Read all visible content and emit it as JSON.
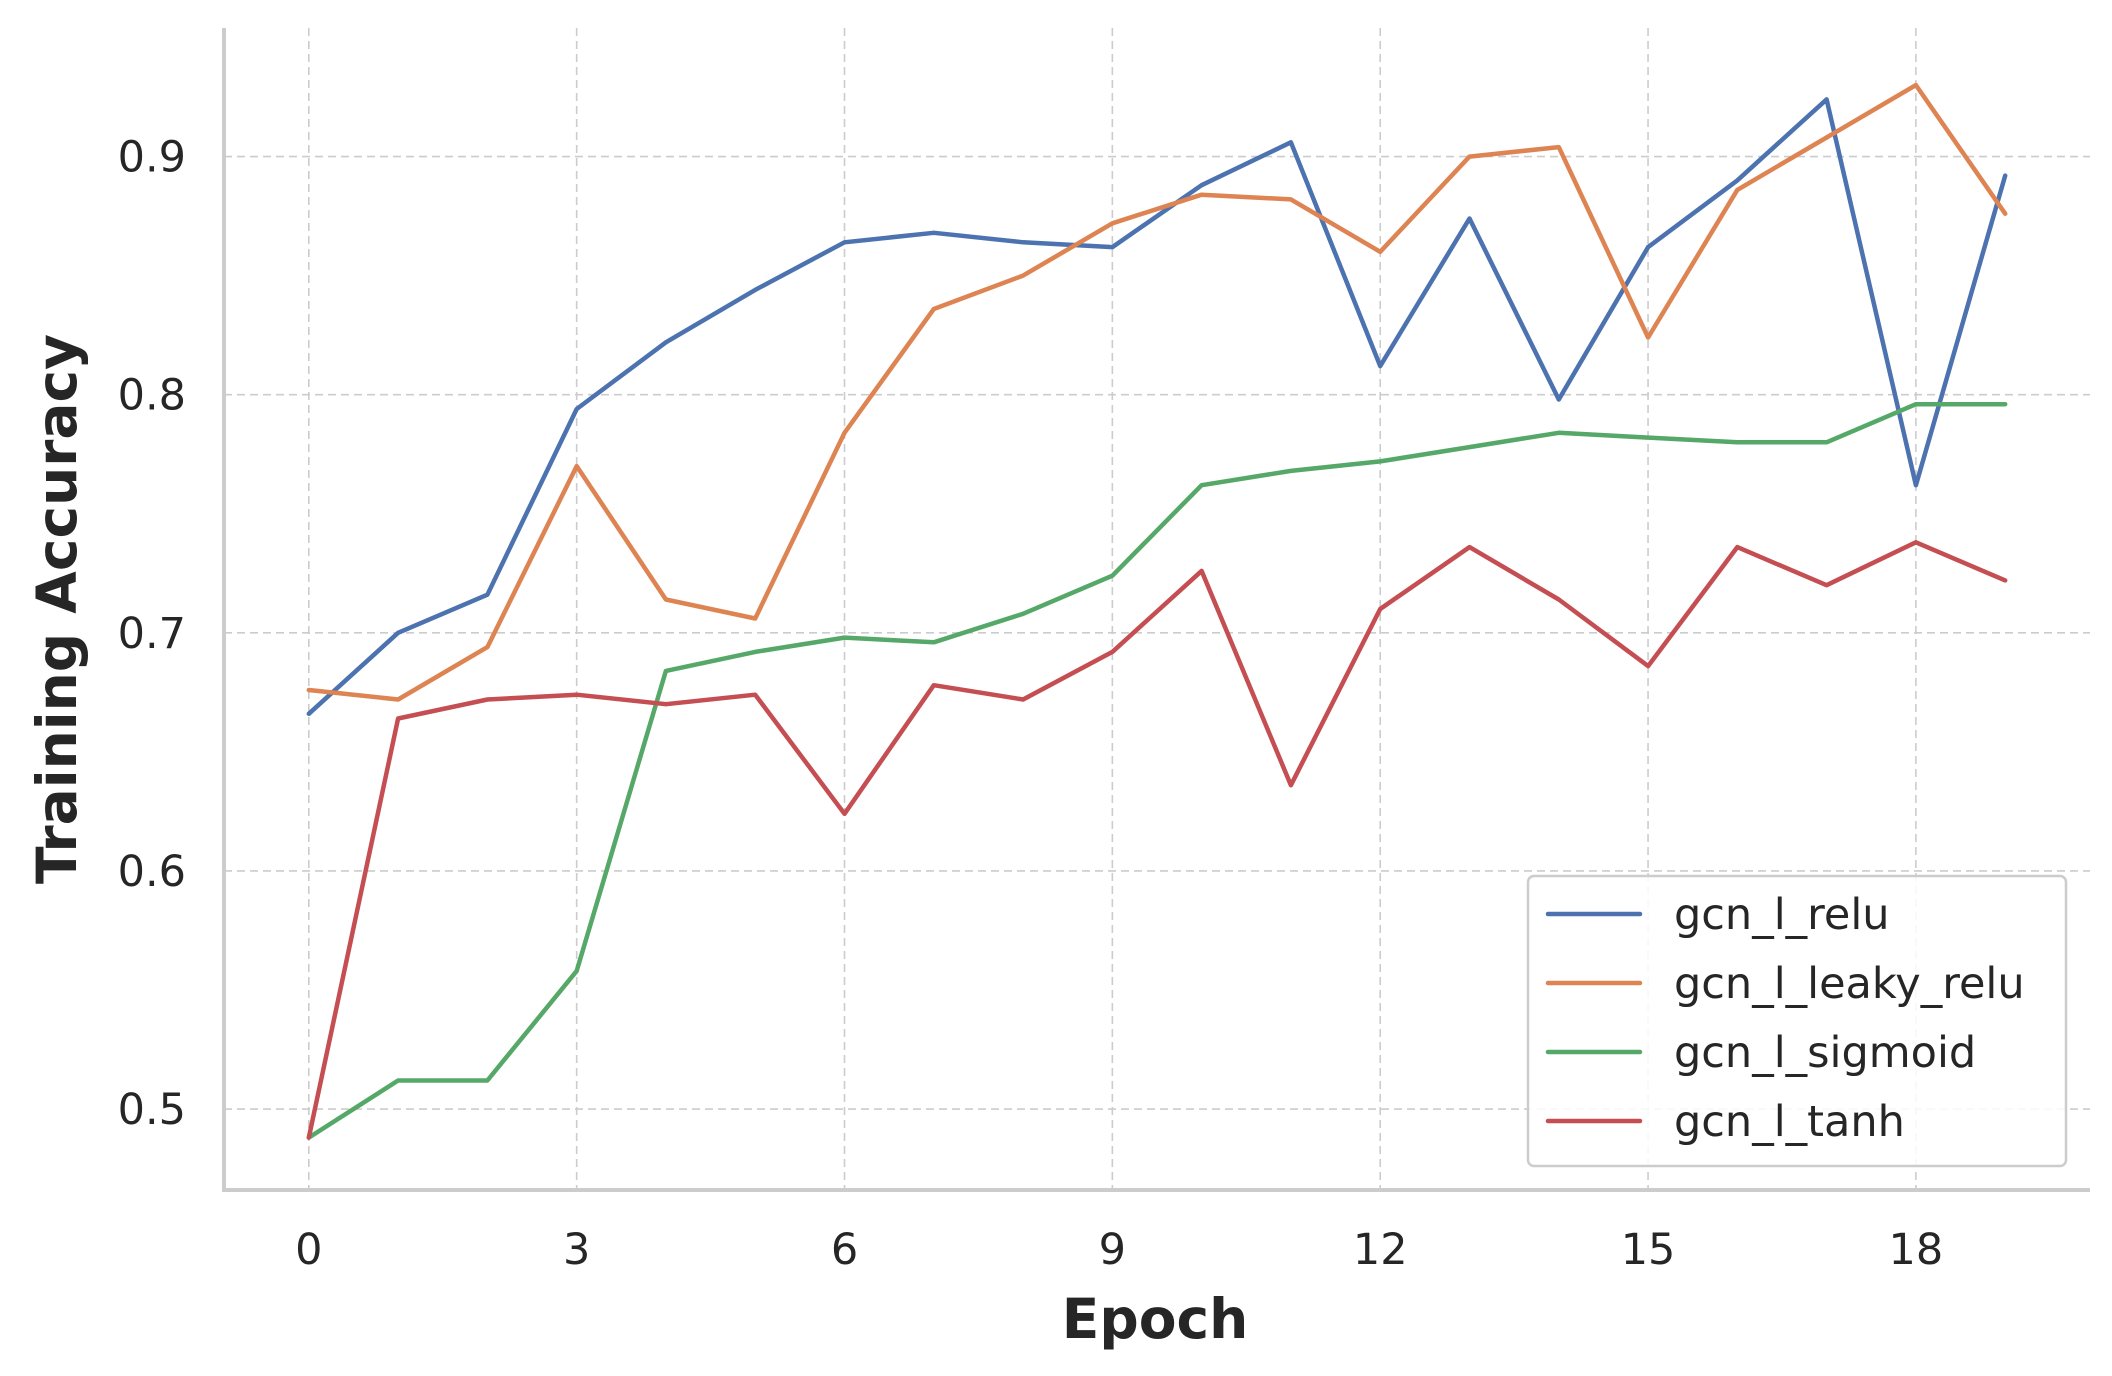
{
  "chart_data": {
    "type": "line",
    "title": "",
    "xlabel": "Epoch",
    "ylabel": "Training Accuracy",
    "x": [
      0,
      1,
      2,
      3,
      4,
      5,
      6,
      7,
      8,
      9,
      10,
      11,
      12,
      13,
      14,
      15,
      16,
      17,
      18,
      19
    ],
    "xticks": [
      0,
      3,
      6,
      9,
      12,
      15,
      18
    ],
    "yticks": [
      0.5,
      0.6,
      0.7,
      0.8,
      0.9
    ],
    "ytick_labels": [
      "0.5",
      "0.6",
      "0.7",
      "0.8",
      "0.9"
    ],
    "xlim": [
      -0.95,
      19.95
    ],
    "ylim": [
      0.466,
      0.954
    ],
    "grid": true,
    "legend_position": "lower-right",
    "series": [
      {
        "name": "gcn_l_relu",
        "color": "#4c72b0",
        "values": [
          0.666,
          0.7,
          0.716,
          0.794,
          0.822,
          0.844,
          0.864,
          0.868,
          0.864,
          0.862,
          0.888,
          0.906,
          0.812,
          0.874,
          0.798,
          0.862,
          0.89,
          0.924,
          0.762,
          0.892
        ]
      },
      {
        "name": "gcn_l_leaky_relu",
        "color": "#dd8452",
        "values": [
          0.676,
          0.672,
          0.694,
          0.77,
          0.714,
          0.706,
          0.784,
          0.836,
          0.85,
          0.872,
          0.884,
          0.882,
          0.86,
          0.9,
          0.904,
          0.824,
          0.886,
          0.908,
          0.93,
          0.876
        ]
      },
      {
        "name": "gcn_l_sigmoid",
        "color": "#55a868",
        "values": [
          0.488,
          0.512,
          0.512,
          0.558,
          0.684,
          0.692,
          0.698,
          0.696,
          0.708,
          0.724,
          0.762,
          0.768,
          0.772,
          0.778,
          0.784,
          0.782,
          0.78,
          0.78,
          0.796,
          0.796
        ]
      },
      {
        "name": "gcn_l_tanh",
        "color": "#c44e52",
        "values": [
          0.488,
          0.664,
          0.672,
          0.674,
          0.67,
          0.674,
          0.624,
          0.678,
          0.672,
          0.692,
          0.726,
          0.636,
          0.71,
          0.736,
          0.714,
          0.686,
          0.736,
          0.72,
          0.738,
          0.722
        ]
      }
    ]
  }
}
